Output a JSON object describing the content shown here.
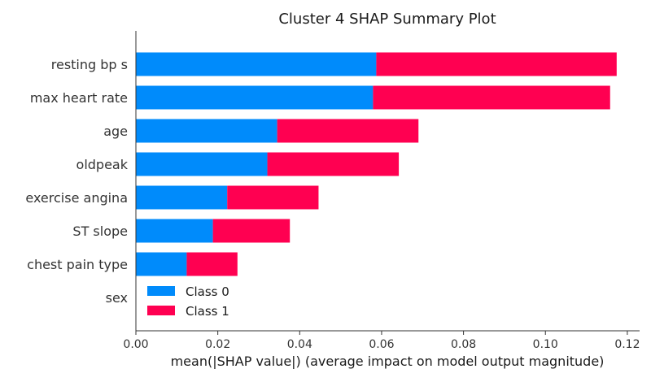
{
  "chart_data": {
    "type": "bar",
    "stacked": true,
    "orientation": "horizontal",
    "title": "Cluster 4 SHAP Summary Plot",
    "xlabel": "mean(|SHAP value|) (average impact on model output magnitude)",
    "ylabel": "",
    "categories": [
      "resting bp s",
      "max heart rate",
      "age",
      "oldpeak",
      "exercise angina",
      "ST slope",
      "chest pain type",
      "sex"
    ],
    "series": [
      {
        "name": "Class 0",
        "color": "#008bfb",
        "values": [
          0.0587,
          0.0579,
          0.0345,
          0.0321,
          0.0223,
          0.0188,
          0.0124,
          0.0
        ]
      },
      {
        "name": "Class 1",
        "color": "#ff0051",
        "values": [
          0.0587,
          0.0579,
          0.0345,
          0.0321,
          0.0223,
          0.0188,
          0.0124,
          0.0
        ]
      }
    ],
    "xlim": [
      0,
      0.123
    ],
    "xticks": [
      "0.00",
      "0.02",
      "0.04",
      "0.06",
      "0.08",
      "0.10",
      "0.12"
    ],
    "legend_position": "lower-left",
    "grid": false
  }
}
